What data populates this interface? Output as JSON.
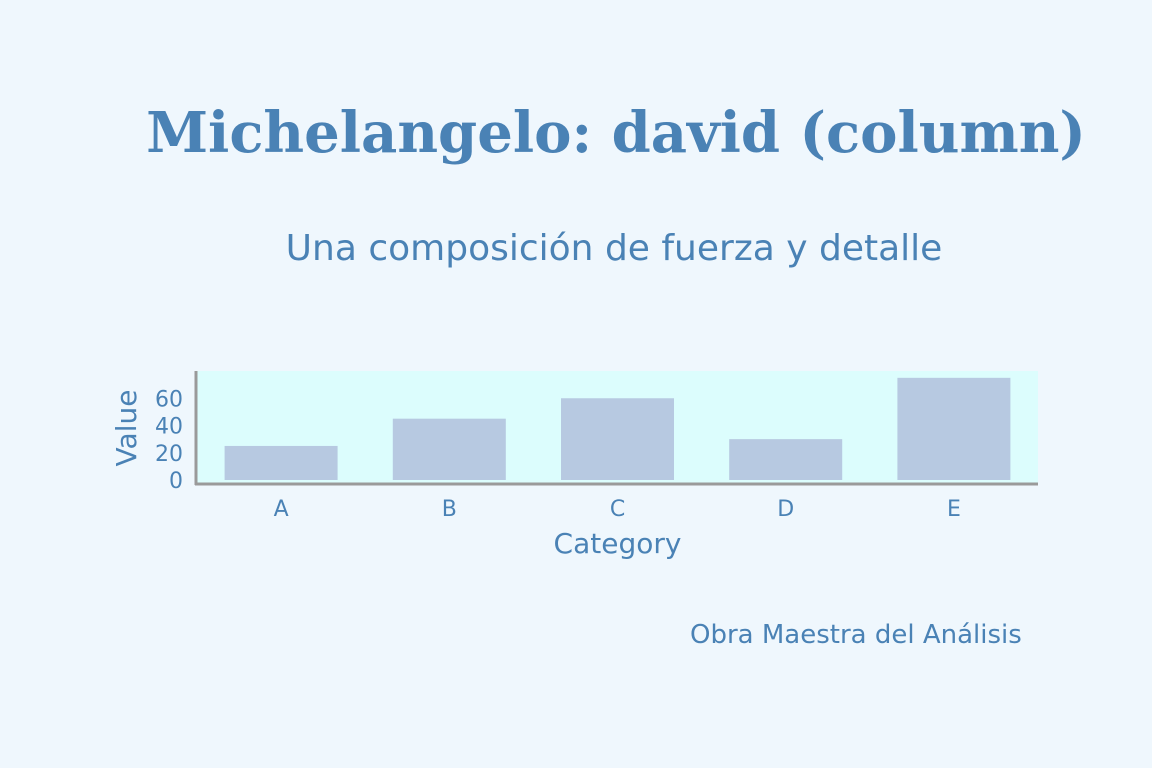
{
  "title": "Michelangelo: david (column)",
  "subtitle": "Una composición de fuerza y detalle",
  "footer": "Obra Maestra del Análisis",
  "colors": {
    "background": "#eff7fd",
    "plot_background": "#dcfdfd",
    "bar": "#b7c9e1",
    "text": "#4a82b5",
    "axis": "#9a9a9a"
  },
  "chart_data": {
    "type": "bar",
    "categories": [
      "A",
      "B",
      "C",
      "D",
      "E"
    ],
    "values": [
      25,
      45,
      60,
      30,
      75
    ],
    "xlabel": "Category",
    "ylabel": "Value",
    "ylim": [
      0,
      80
    ],
    "yticks": [
      0,
      20,
      40,
      60
    ],
    "grid": false,
    "legend": "none"
  }
}
